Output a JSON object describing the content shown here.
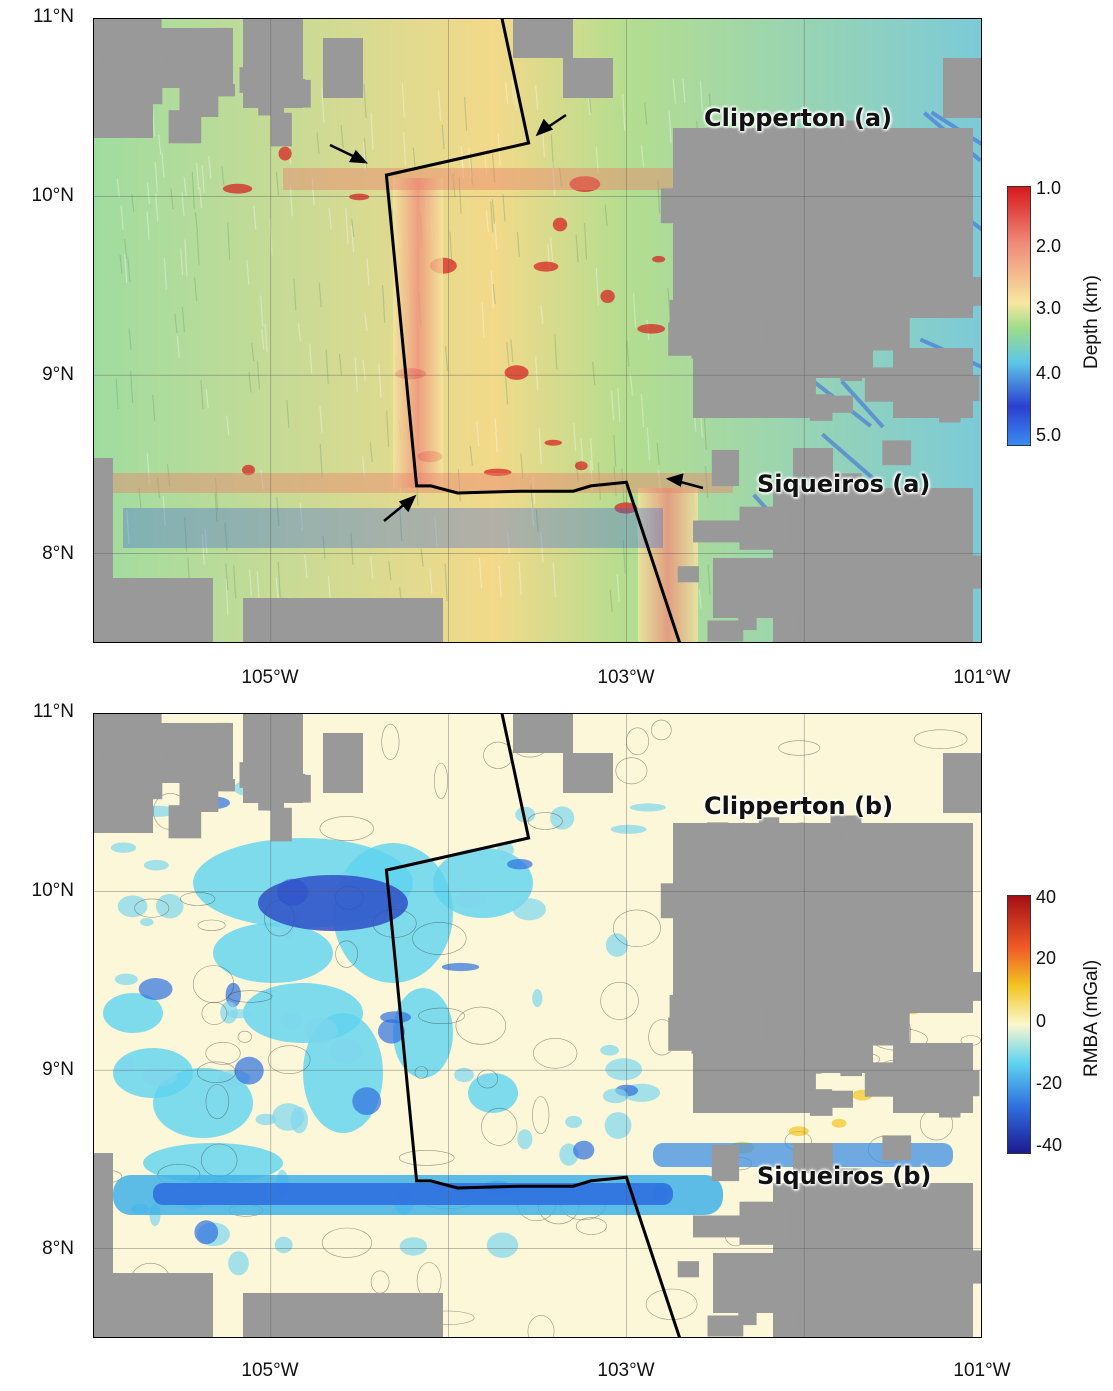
{
  "panels": [
    {
      "id": "a",
      "region_labels": [
        "Clipperton (a)",
        "Siqueiros (a)"
      ],
      "lat_ticks": [
        "11°N",
        "10°N",
        "9°N",
        "8°N"
      ],
      "lon_ticks": [
        "105°W",
        "103°W",
        "101°W"
      ],
      "colorbar": {
        "title": "Depth (km)",
        "ticks": [
          "1.0",
          "2.0",
          "3.0",
          "4.0",
          "5.0"
        ],
        "colors": [
          "#d7191c",
          "#f08a7a",
          "#f6e7a0",
          "#9bdc8a",
          "#5ec6e8",
          "#2b3fd0",
          "#3a8cf0"
        ]
      }
    },
    {
      "id": "b",
      "region_labels": [
        "Clipperton (b)",
        "Siqueiros (b)"
      ],
      "lat_ticks": [
        "11°N",
        "10°N",
        "9°N",
        "8°N"
      ],
      "lon_ticks": [
        "105°W",
        "103°W",
        "101°W"
      ],
      "colorbar": {
        "title": "RMBA (mGal)",
        "ticks": [
          "40",
          "20",
          "0",
          "-20",
          "-40"
        ],
        "colors": [
          "#a50f15",
          "#f05a28",
          "#f2c522",
          "#fbf7cf",
          "#5fd3f0",
          "#2f6fe0",
          "#1c1a8f"
        ]
      }
    }
  ],
  "map_extent": {
    "lon": [
      -106,
      -101
    ],
    "lat": [
      7.5,
      11
    ]
  },
  "plate_boundary": {
    "lon_lat": [
      [
        -103.7,
        11.0
      ],
      [
        -103.55,
        10.3
      ],
      [
        -104.35,
        10.12
      ],
      [
        -104.18,
        8.38
      ],
      [
        -104.1,
        8.38
      ],
      [
        -103.95,
        8.34
      ],
      [
        -103.6,
        8.35
      ],
      [
        -103.3,
        8.35
      ],
      [
        -103.2,
        8.38
      ],
      [
        -103.0,
        8.4
      ],
      [
        -102.7,
        7.5
      ]
    ]
  },
  "land_mask_color": "#999999"
}
